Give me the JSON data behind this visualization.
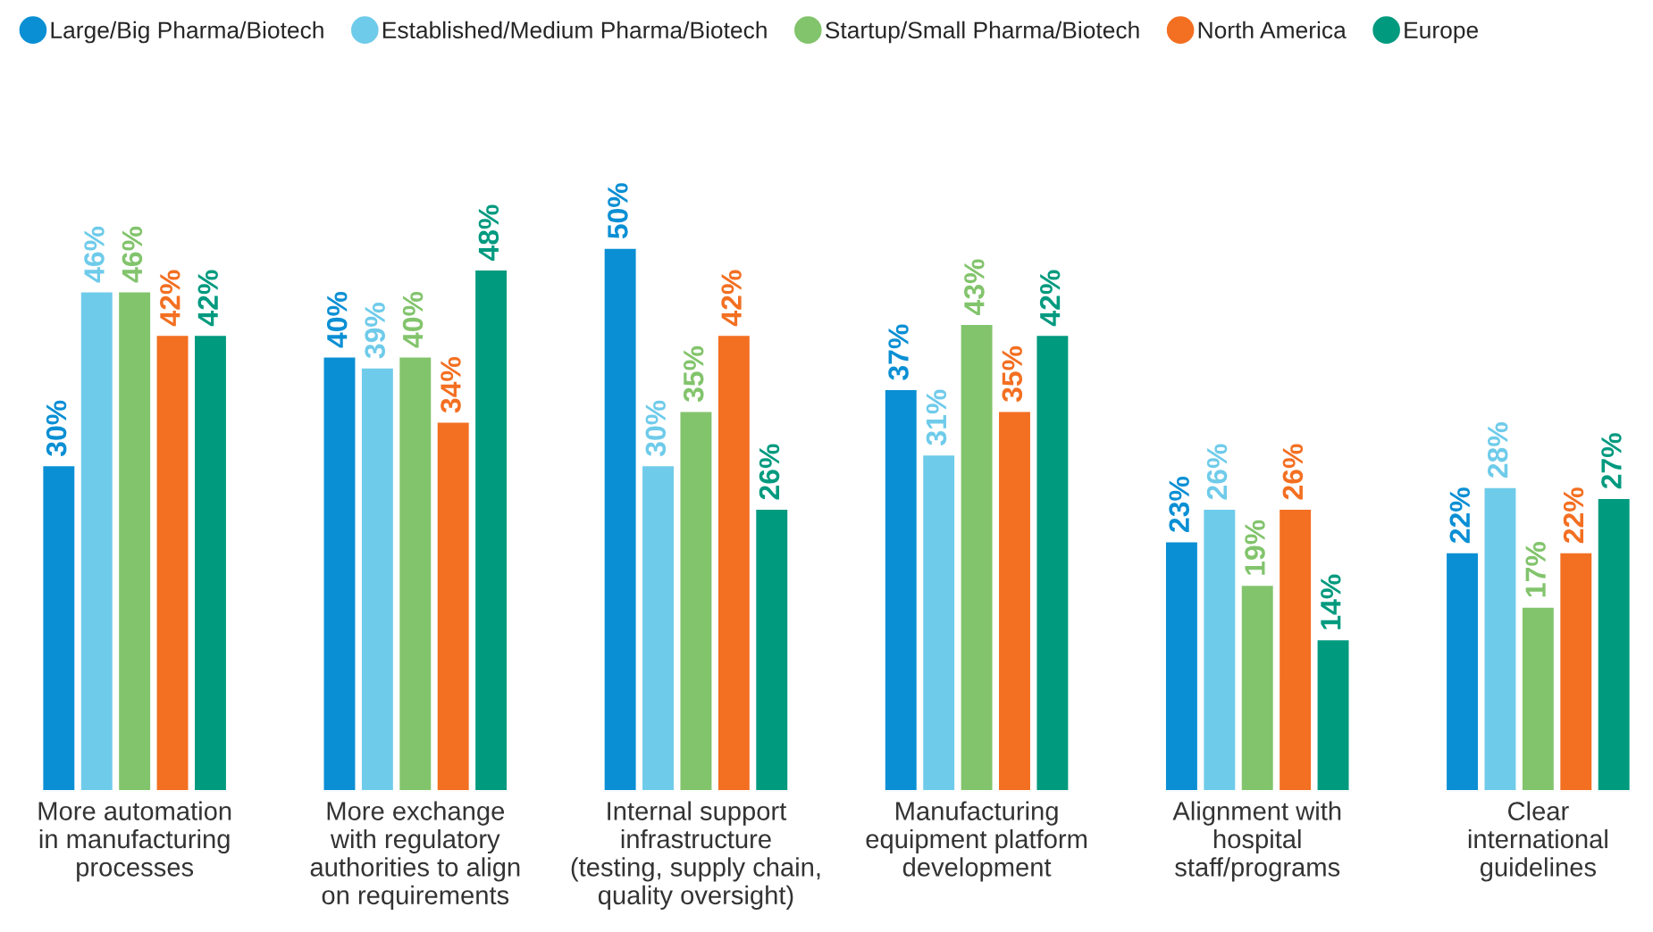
{
  "chart_data": {
    "type": "bar",
    "categories": [
      "More automation\nin manufacturing\nprocesses",
      "More exchange\nwith regulatory\nauthorities to align\non requirements",
      "Internal support\ninfrastructure\n(testing, supply chain,\nquality oversight)",
      "Manufacturing\nequipment platform\ndevelopment",
      "Alignment with\nhospital\nstaff/programs",
      "Clear\ninternational\nguidelines"
    ],
    "series": [
      {
        "name": "Large/Big Pharma/Biotech",
        "color": "#0a8fd4",
        "values": [
          30,
          40,
          50,
          37,
          23,
          22
        ],
        "value_labels": [
          "30%",
          "40%",
          "50%",
          "37%",
          "23%",
          "22%"
        ]
      },
      {
        "name": "Established/Medium Pharma/Biotech",
        "color": "#6fcbea",
        "values": [
          46,
          39,
          30,
          31,
          26,
          28
        ],
        "value_labels": [
          "46%",
          "39%",
          "30%",
          "31%",
          "26%",
          "28%"
        ]
      },
      {
        "name": "Startup/Small Pharma/Biotech",
        "color": "#82c46c",
        "values": [
          46,
          40,
          35,
          43,
          19,
          17
        ],
        "value_labels": [
          "46%",
          "40%",
          "35%",
          "43%",
          "19%",
          "17%"
        ]
      },
      {
        "name": "North America",
        "color": "#f36f21",
        "values": [
          42,
          34,
          42,
          35,
          26,
          22
        ],
        "value_labels": [
          "42%",
          "34%",
          "42%",
          "35%",
          "26%",
          "22%"
        ]
      },
      {
        "name": "Europe",
        "color": "#009a7f",
        "values": [
          42,
          48,
          26,
          42,
          14,
          27
        ],
        "value_labels": [
          "42%",
          "48%",
          "26%",
          "42%",
          "14%",
          "27%"
        ]
      }
    ],
    "legend": "top"
  }
}
